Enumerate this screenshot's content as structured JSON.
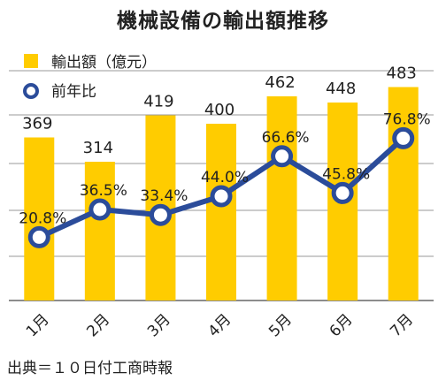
{
  "title": "機械設備の輸出額推移",
  "source": "出典＝１０日付工商時報",
  "colors": {
    "bar": "#FFCC00",
    "line": "#2B4C9A",
    "marker_fill": "#ffffff",
    "grid": "#999999"
  },
  "chart_data": {
    "type": "bar",
    "title": "機械設備の輸出額推移",
    "categories": [
      "1月",
      "2月",
      "3月",
      "4月",
      "5月",
      "6月",
      "7月"
    ],
    "series": [
      {
        "name": "輸出額（億元）",
        "type": "bar",
        "values": [
          369,
          314,
          419,
          400,
          462,
          448,
          483
        ]
      },
      {
        "name": "前年比",
        "type": "line",
        "values": [
          20.8,
          36.5,
          33.4,
          44.0,
          66.6,
          45.8,
          76.8
        ],
        "labels": [
          "20.8%",
          "36.5%",
          "33.4%",
          "44.0%",
          "66.6%",
          "45.8%",
          "76.8%"
        ]
      }
    ],
    "legend": "top-left",
    "grid": true
  }
}
